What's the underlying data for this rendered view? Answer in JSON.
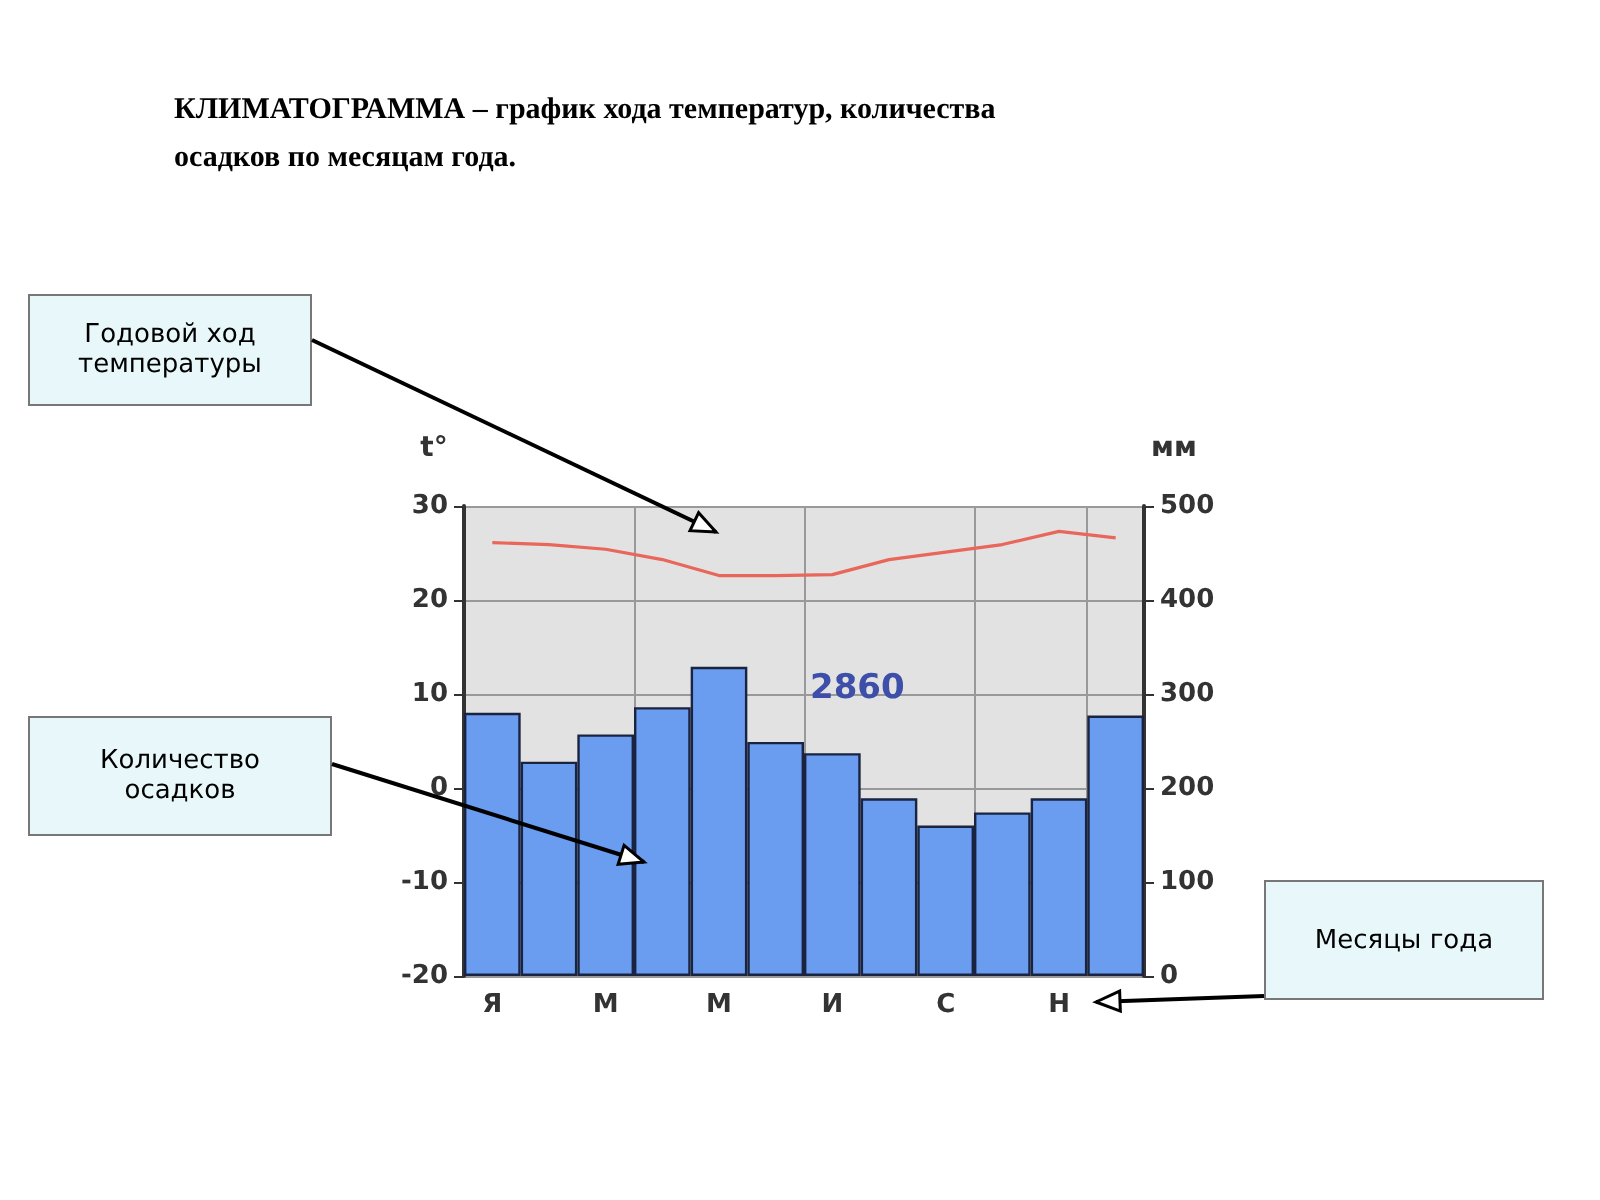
{
  "chart_data": {
    "type": "bar",
    "title": "КЛИМАТОГРАММА – график хода температур, количества осадков по месяцам года.",
    "ylabel": "t°",
    "y2label": "мм",
    "categories": [
      "Я",
      null,
      "М",
      null,
      "М",
      null,
      "И",
      null,
      "С",
      null,
      "Н",
      null
    ],
    "series": [
      {
        "axis": "y2",
        "color": "#6a9cf0",
        "values": [
          280,
          228,
          257,
          286,
          329,
          249,
          237,
          189,
          160,
          174,
          189,
          277
        ]
      },
      {
        "type": "line",
        "axis": "y",
        "color": "#e8665a",
        "values": [
          26.1,
          25.9,
          25.4,
          24.3,
          22.6,
          22.6,
          22.7,
          24.3,
          25.1,
          25.9,
          27.3,
          26.6
        ]
      }
    ],
    "ylim": [
      -20,
      30
    ],
    "yticks": [
      -20,
      -10,
      0,
      10,
      20,
      30
    ],
    "y2lim": [
      0,
      500
    ],
    "y2ticks": [
      0,
      100,
      200,
      300,
      400,
      500
    ],
    "grid": true,
    "marker": "none",
    "annotations": [
      "2860",
      "Годовой ход температуры",
      "Количество осадков",
      "Месяцы года"
    ]
  }
}
